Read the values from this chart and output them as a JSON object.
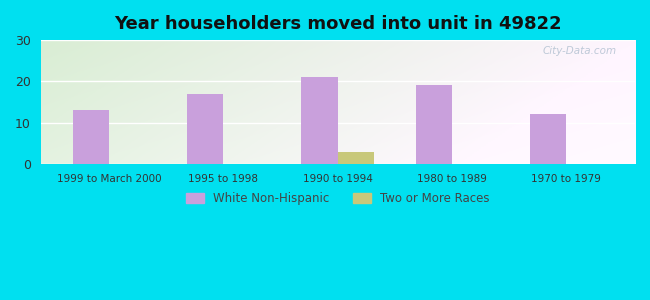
{
  "title": "Year householders moved into unit in 49822",
  "categories": [
    "1999 to March 2000",
    "1995 to 1998",
    "1990 to 1994",
    "1980 to 1989",
    "1970 to 1979"
  ],
  "white_non_hispanic": [
    13,
    17,
    21,
    19,
    12
  ],
  "two_or_more_races": [
    0,
    0,
    3,
    0,
    0
  ],
  "bar_color_white": "#c9a0dc",
  "bar_color_two": "#c8c87a",
  "ylim": [
    0,
    30
  ],
  "yticks": [
    0,
    10,
    20,
    30
  ],
  "bg_outer": "#00e0f0",
  "legend_white": "White Non-Hispanic",
  "legend_two": "Two or More Races",
  "bar_width": 0.32
}
